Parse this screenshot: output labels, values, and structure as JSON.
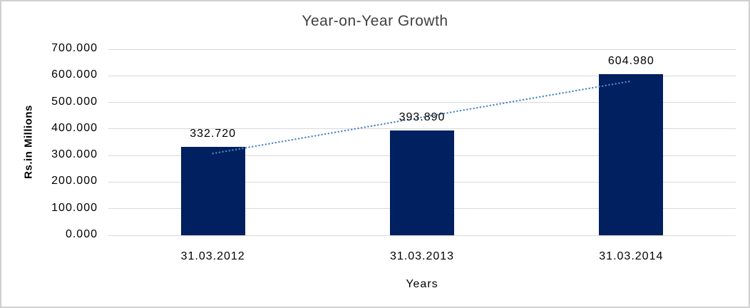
{
  "frame": {
    "background": "#ffffff",
    "border_color": "#d0d0d0"
  },
  "chart_data": {
    "type": "bar",
    "title": "Year-on-Year Growth",
    "xlabel": "Years",
    "ylabel": "Rs.in Millions",
    "categories": [
      "31.03.2012",
      "31.03.2013",
      "31.03.2014"
    ],
    "values": [
      332.72,
      393.89,
      604.98
    ],
    "value_labels": [
      "332.720",
      "393.890",
      "604.980"
    ],
    "ylim": [
      0,
      700
    ],
    "ytick_step": 100,
    "ytick_labels": [
      "0.000",
      "100.000",
      "200.000",
      "300.000",
      "400.000",
      "500.000",
      "600.000",
      "700.000"
    ],
    "grid": true,
    "legend": "none",
    "bar_color": "#002060",
    "gridline_color": "#d9d9d9",
    "title_color": "#404040",
    "text_color": "#000000",
    "trendline": {
      "type": "linear",
      "style": "dotted",
      "color": "#4f86c6",
      "span": "first-bar-center-to-last-bar-center"
    }
  }
}
